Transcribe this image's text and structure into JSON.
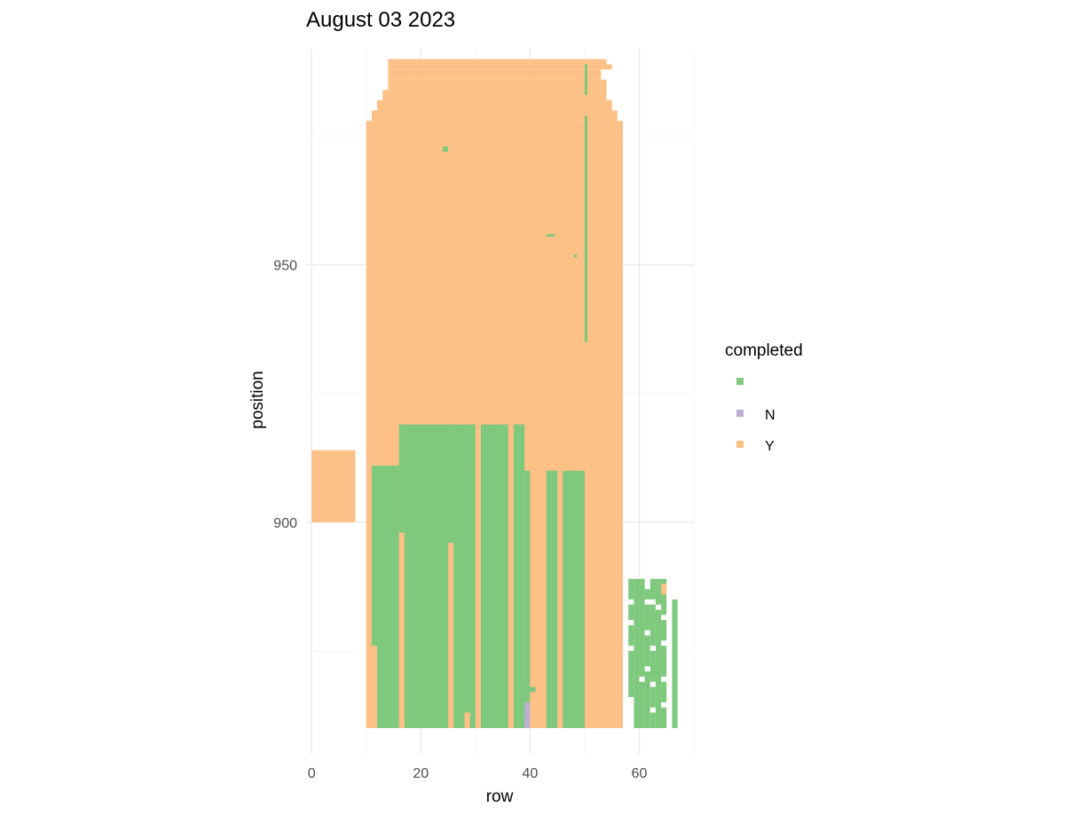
{
  "chart_data": {
    "type": "heatmap",
    "title": "August 03 2023",
    "xlabel": "row",
    "ylabel": "position",
    "xlim": [
      -1,
      70
    ],
    "ylim": [
      855,
      992
    ],
    "x_ticks": [
      0,
      20,
      40,
      60
    ],
    "x_minor": [
      10,
      30,
      50,
      70
    ],
    "y_ticks": [
      900,
      950
    ],
    "y_minor": [
      875,
      925,
      975
    ],
    "grid": true,
    "legend_position": "right",
    "legend": {
      "title": "completed",
      "entries": [
        {
          "key": "",
          "label": "",
          "color": "#7fc97f"
        },
        {
          "key": "N",
          "label": "N",
          "color": "#beaed4"
        },
        {
          "key": "Y",
          "label": "Y",
          "color": "#fdc086"
        }
      ]
    },
    "tiles": [
      {
        "status": "Y",
        "x": [
          0,
          8
        ],
        "y": [
          900,
          914
        ]
      },
      {
        "status": "Y",
        "x": [
          10,
          57
        ],
        "y": [
          860,
          911
        ]
      },
      {
        "status": "Y",
        "x": [
          10,
          57
        ],
        "y": [
          911,
          978
        ]
      },
      {
        "status": "Y",
        "x": [
          11,
          56
        ],
        "y": [
          978,
          980
        ]
      },
      {
        "status": "Y",
        "x": [
          12,
          55
        ],
        "y": [
          980,
          982
        ]
      },
      {
        "status": "Y",
        "x": [
          13,
          54
        ],
        "y": [
          982,
          984
        ]
      },
      {
        "status": "Y",
        "x": [
          14,
          54
        ],
        "y": [
          984,
          986
        ]
      },
      {
        "status": "Y",
        "x": [
          14,
          53
        ],
        "y": [
          986,
          988
        ]
      },
      {
        "status": "Y",
        "x": [
          14,
          55
        ],
        "y": [
          988,
          989
        ]
      },
      {
        "status": "Y",
        "x": [
          14,
          54
        ],
        "y": [
          989,
          990
        ]
      },
      {
        "status": "",
        "x": [
          50,
          50.5
        ],
        "y": [
          935,
          979
        ]
      },
      {
        "status": "",
        "x": [
          50,
          50.5
        ],
        "y": [
          983,
          989
        ]
      },
      {
        "status": "",
        "x": [
          11,
          12
        ],
        "y": [
          876,
          911
        ]
      },
      {
        "status": "",
        "x": [
          12,
          16
        ],
        "y": [
          860,
          911
        ]
      },
      {
        "status": "",
        "x": [
          16,
          17
        ],
        "y": [
          898,
          919
        ]
      },
      {
        "status": "",
        "x": [
          17,
          25
        ],
        "y": [
          860,
          919
        ]
      },
      {
        "status": "",
        "x": [
          25,
          26
        ],
        "y": [
          896,
          919
        ]
      },
      {
        "status": "",
        "x": [
          26,
          28
        ],
        "y": [
          860,
          919
        ]
      },
      {
        "status": "",
        "x": [
          28,
          29
        ],
        "y": [
          864,
          919
        ]
      },
      {
        "status": "",
        "x": [
          29,
          30
        ],
        "y": [
          860,
          919
        ]
      },
      {
        "status": "",
        "x": [
          31,
          34
        ],
        "y": [
          860,
          919
        ]
      },
      {
        "status": "",
        "x": [
          34,
          36
        ],
        "y": [
          860,
          919
        ]
      },
      {
        "status": "",
        "x": [
          37,
          39
        ],
        "y": [
          860,
          919
        ]
      },
      {
        "status": "",
        "x": [
          39,
          40
        ],
        "y": [
          862,
          910
        ]
      },
      {
        "status": "",
        "x": [
          43,
          45
        ],
        "y": [
          860,
          910
        ]
      },
      {
        "status": "",
        "x": [
          46,
          50
        ],
        "y": [
          860,
          910
        ]
      },
      {
        "status": "",
        "x": [
          15,
          16
        ],
        "y": [
          897,
          898
        ]
      },
      {
        "status": "",
        "x": [
          28,
          29
        ],
        "y": [
          863,
          864
        ]
      },
      {
        "status": "",
        "x": [
          39,
          41
        ],
        "y": [
          867,
          868
        ]
      },
      {
        "status": "",
        "x": [
          24,
          25
        ],
        "y": [
          972,
          973
        ]
      },
      {
        "status": "",
        "x": [
          43,
          44.5
        ],
        "y": [
          955.5,
          956
        ]
      },
      {
        "status": "",
        "x": [
          48,
          48.6
        ],
        "y": [
          951.5,
          952
        ]
      },
      {
        "status": "",
        "x": [
          58,
          59
        ],
        "y": [
          866,
          889
        ]
      },
      {
        "status": "",
        "x": [
          59,
          60
        ],
        "y": [
          860,
          889
        ]
      },
      {
        "status": "",
        "x": [
          60,
          61
        ],
        "y": [
          860,
          889
        ]
      },
      {
        "status": "",
        "x": [
          61,
          62
        ],
        "y": [
          860,
          887
        ]
      },
      {
        "status": "",
        "x": [
          62,
          63
        ],
        "y": [
          860,
          889
        ]
      },
      {
        "status": "",
        "x": [
          63,
          64
        ],
        "y": [
          860,
          889
        ]
      },
      {
        "status": "",
        "x": [
          64,
          65
        ],
        "y": [
          860,
          889
        ]
      },
      {
        "status": "",
        "x": [
          66,
          67
        ],
        "y": [
          860,
          885
        ]
      },
      {
        "status": "Y",
        "x": [
          64,
          65
        ],
        "y": [
          886,
          888
        ]
      },
      {
        "status": "N",
        "x": [
          39,
          40
        ],
        "y": [
          860,
          865
        ]
      }
    ],
    "gaps": [
      {
        "x": [
          58,
          59
        ],
        "y": [
          861,
          862
        ]
      },
      {
        "x": [
          58,
          59
        ],
        "y": [
          864,
          866
        ]
      },
      {
        "x": [
          58,
          59
        ],
        "y": [
          875,
          876
        ]
      },
      {
        "x": [
          58,
          59
        ],
        "y": [
          880,
          881
        ]
      },
      {
        "x": [
          58,
          59
        ],
        "y": [
          884,
          885
        ]
      },
      {
        "x": [
          62,
          63
        ],
        "y": [
          863,
          864
        ]
      },
      {
        "x": [
          62,
          63
        ],
        "y": [
          868,
          869
        ]
      },
      {
        "x": [
          62,
          63
        ],
        "y": [
          875,
          876
        ]
      },
      {
        "x": [
          62,
          63
        ],
        "y": [
          880,
          881
        ]
      },
      {
        "x": [
          62,
          63
        ],
        "y": [
          884,
          885
        ]
      },
      {
        "x": [
          61,
          62
        ],
        "y": [
          871,
          872
        ]
      },
      {
        "x": [
          61,
          62
        ],
        "y": [
          878,
          879
        ]
      },
      {
        "x": [
          61,
          62
        ],
        "y": [
          884,
          885
        ]
      },
      {
        "x": [
          64,
          65
        ],
        "y": [
          864,
          865
        ]
      },
      {
        "x": [
          64,
          65
        ],
        "y": [
          869,
          870
        ]
      },
      {
        "x": [
          64,
          65
        ],
        "y": [
          876,
          877
        ]
      },
      {
        "x": [
          64,
          65
        ],
        "y": [
          881,
          882
        ]
      },
      {
        "x": [
          63,
          64
        ],
        "y": [
          883,
          884
        ]
      },
      {
        "x": [
          65,
          66
        ],
        "y": [
          860,
          889
        ]
      },
      {
        "x": [
          60,
          61
        ],
        "y": [
          869,
          870
        ]
      }
    ],
    "bridges": [
      {
        "x": [
          61,
          63
        ],
        "y": [
          870,
          871
        ]
      },
      {
        "x": [
          61,
          63
        ],
        "y": [
          880,
          881
        ]
      },
      {
        "x": [
          63,
          65
        ],
        "y": [
          884,
          885
        ]
      }
    ]
  }
}
